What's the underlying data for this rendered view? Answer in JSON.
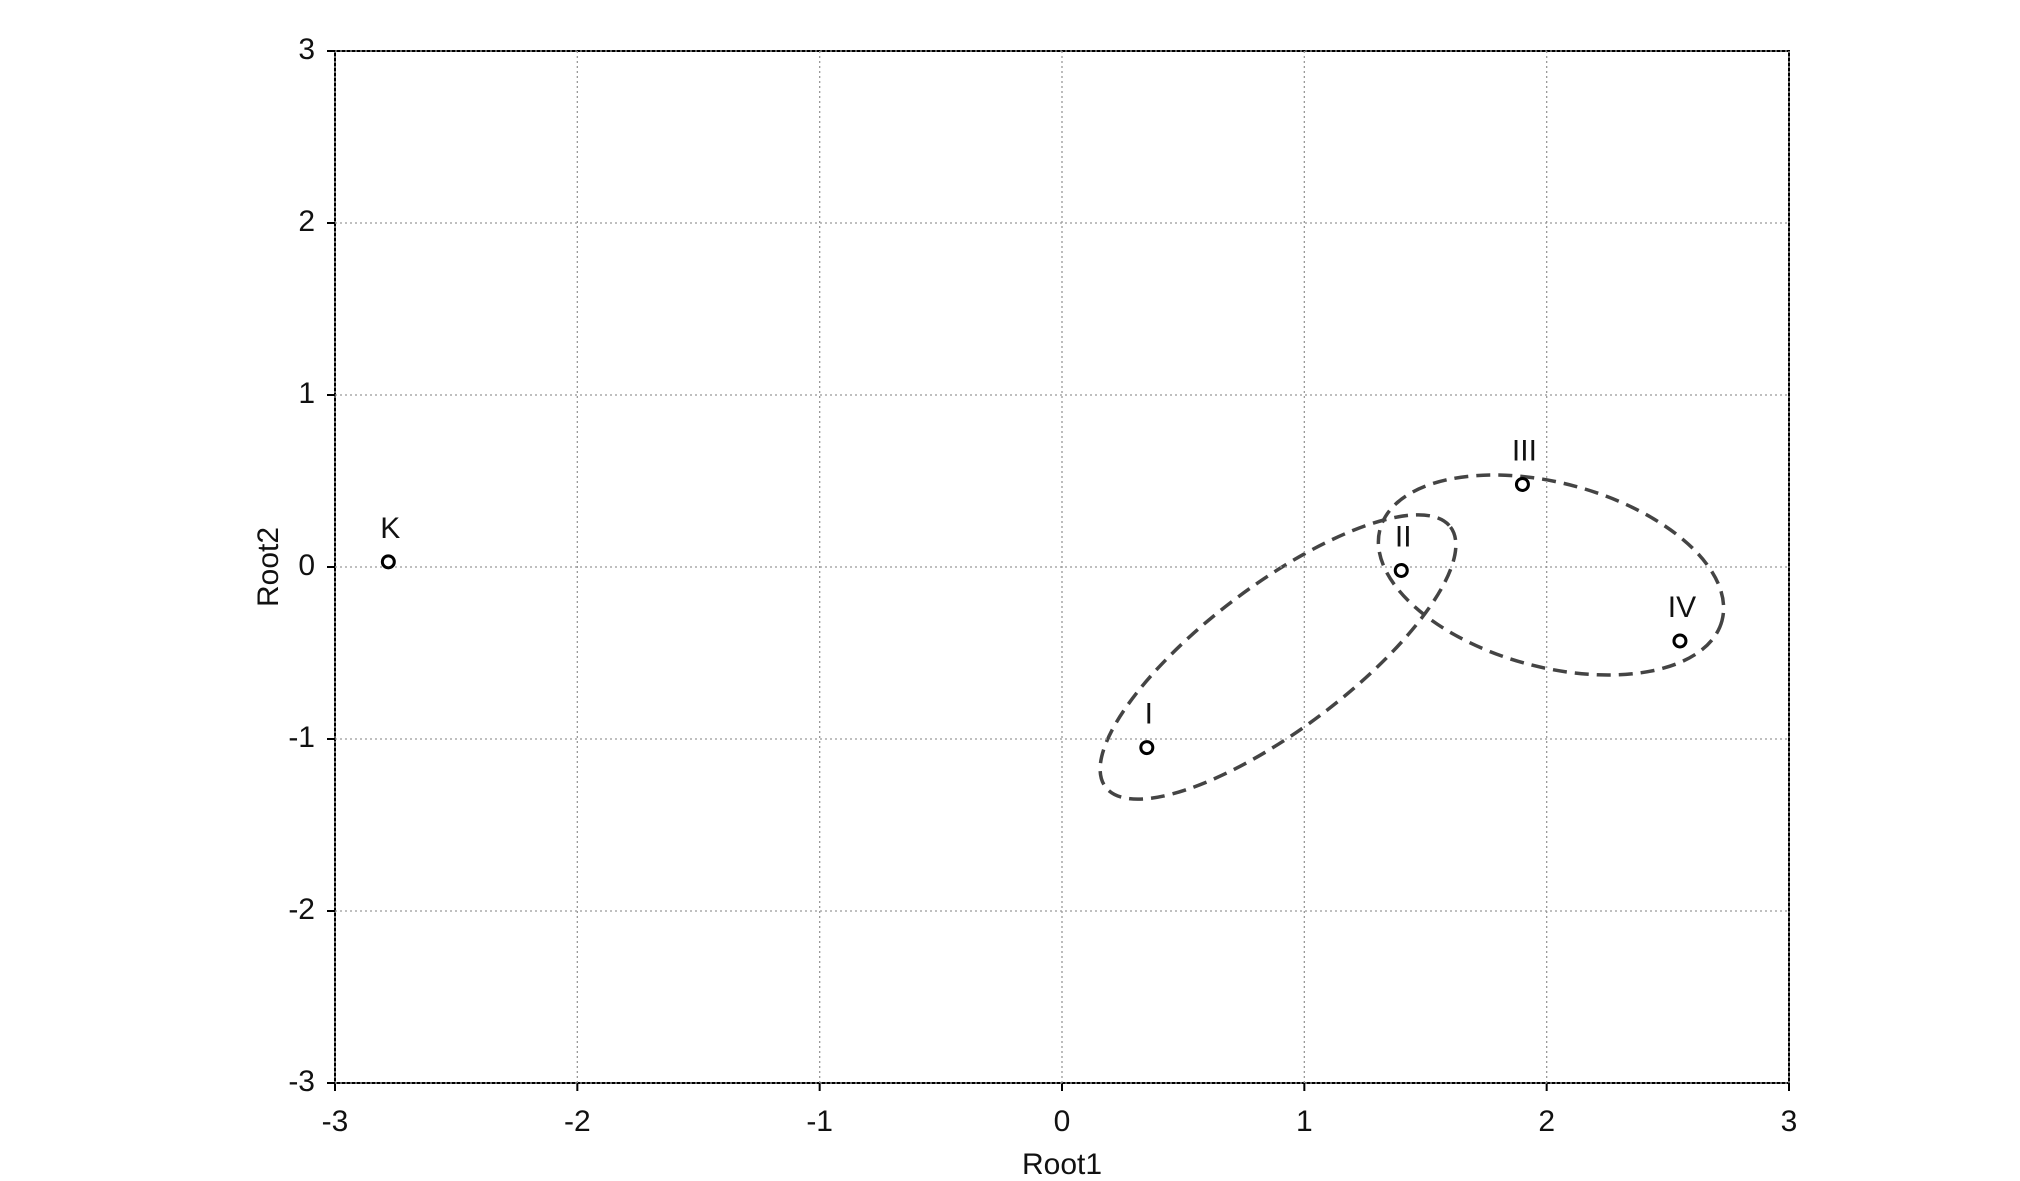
{
  "chart_data": {
    "type": "scatter",
    "x_label": "Root1",
    "y_label": "Root2",
    "xlim": [
      -3,
      3
    ],
    "ylim": [
      -3,
      3
    ],
    "xticks": [
      -3,
      -2,
      -1,
      0,
      1,
      2,
      3
    ],
    "yticks": [
      -3,
      -2,
      -1,
      0,
      1,
      2,
      3
    ],
    "grid": true,
    "color": "#000000",
    "labels": [
      "K",
      "I",
      "II",
      "III",
      "IV"
    ],
    "x": [
      -2.78,
      0.35,
      1.4,
      1.9,
      2.55
    ],
    "y": [
      0.03,
      -1.05,
      -0.02,
      0.48,
      -0.43
    ]
  }
}
